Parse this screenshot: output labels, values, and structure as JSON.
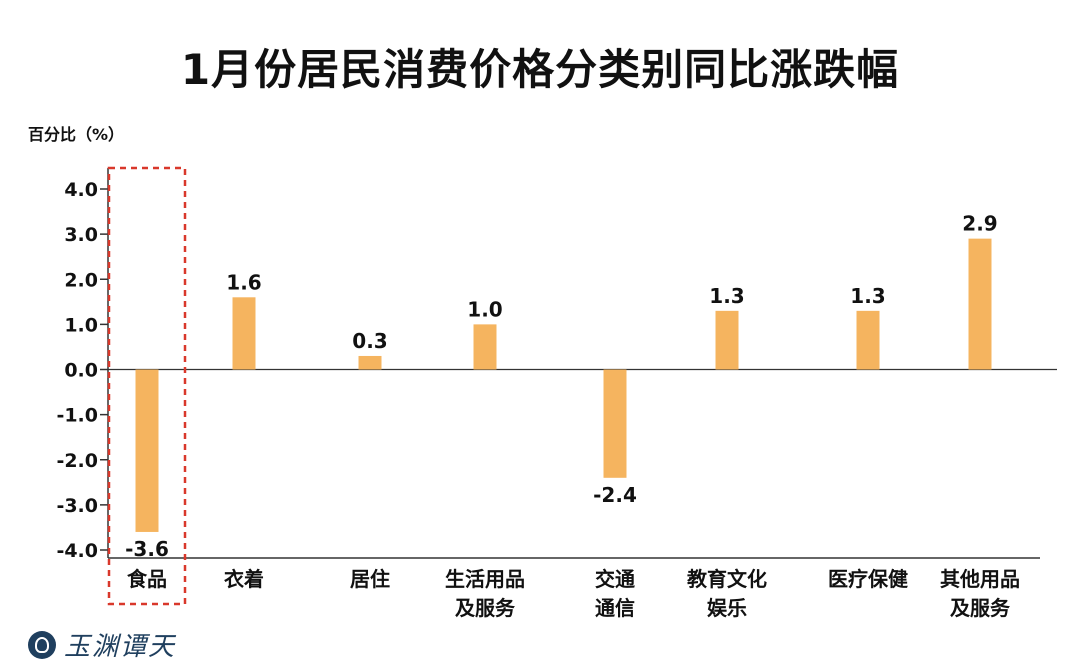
{
  "chart_data": {
    "type": "bar",
    "title": "1月份居民消费价格分类别同比涨跌幅",
    "ylabel": "百分比（%）",
    "ylim": [
      -4.0,
      4.0
    ],
    "yticks": [
      "4.0",
      "3.0",
      "2.0",
      "1.0",
      "0.0",
      "-1.0",
      "-2.0",
      "-3.0",
      "-4.0"
    ],
    "categories": [
      [
        "食品"
      ],
      [
        "衣着"
      ],
      [
        "居住"
      ],
      [
        "生活用品",
        "及服务"
      ],
      [
        "交通",
        "通信"
      ],
      [
        "教育文化",
        "娱乐"
      ],
      [
        "医疗保健"
      ],
      [
        "其他用品",
        "及服务"
      ]
    ],
    "values": [
      -3.6,
      1.6,
      0.3,
      1.0,
      -2.4,
      1.3,
      1.3,
      2.9
    ],
    "value_labels": [
      "-3.6",
      "1.6",
      "0.3",
      "1.0",
      "-2.4",
      "1.3",
      "1.3",
      "2.9"
    ],
    "highlight_index": 0,
    "colors": {
      "bar": "#f5b45f",
      "highlight_box": "#d9382b",
      "axis": "#333333"
    }
  },
  "branding": {
    "logo_text": "玉渊谭天"
  }
}
